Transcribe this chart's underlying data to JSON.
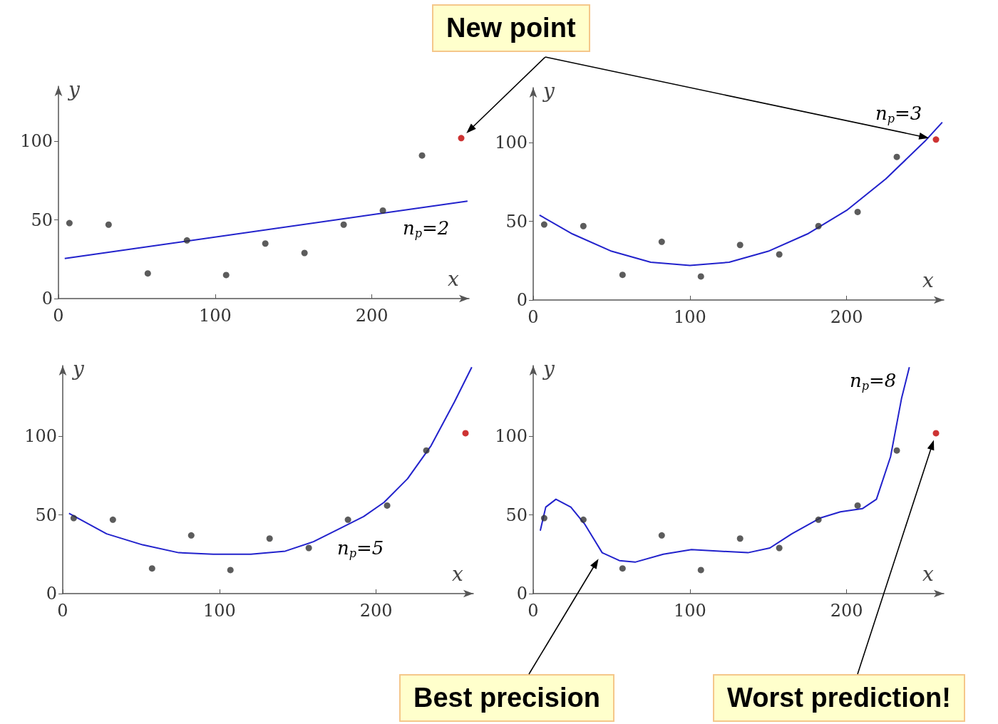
{
  "chart_data": [
    {
      "type": "scatter",
      "xlabel": "x",
      "ylabel": "y",
      "xlim": [
        0,
        262
      ],
      "ylim": [
        0,
        135
      ],
      "xticks": [
        0,
        100,
        200
      ],
      "yticks": [
        0,
        50,
        100
      ],
      "grid": false,
      "marker": "circle",
      "annotations": [
        "n$_{p}$=2",
        "New point"
      ],
      "series": [
        {
          "color": "#333333",
          "x": [
            7,
            32,
            57,
            82,
            107,
            132,
            157,
            182,
            207,
            232
          ],
          "values": [
            48,
            47,
            16,
            37,
            15,
            35,
            29,
            47,
            56,
            91
          ]
        },
        {
          "color": "#c00000",
          "x": [
            257
          ],
          "values": [
            102
          ]
        },
        {
          "type": "line",
          "marker": "none",
          "color": "#2222cc",
          "x": [
            4,
            261
          ],
          "values": [
            25.5,
            62
          ]
        }
      ]
    },
    {
      "type": "scatter",
      "xlabel": "x",
      "ylabel": "y",
      "xlim": [
        0,
        262
      ],
      "ylim": [
        0,
        135
      ],
      "xticks": [
        0,
        100,
        200
      ],
      "yticks": [
        0,
        50,
        100
      ],
      "grid": false,
      "marker": "circle",
      "annotations": [
        "n$_{p}$=3"
      ],
      "series": [
        {
          "color": "#333333",
          "x": [
            7,
            32,
            57,
            82,
            107,
            132,
            157,
            182,
            207,
            232
          ],
          "values": [
            48,
            47,
            16,
            37,
            15,
            35,
            29,
            47,
            56,
            91
          ]
        },
        {
          "color": "#c00000",
          "x": [
            257
          ],
          "values": [
            102
          ]
        },
        {
          "type": "line",
          "marker": "none",
          "color": "#2222cc",
          "x": [
            4,
            25,
            50,
            75,
            100,
            125,
            150,
            175,
            200,
            225,
            250,
            261
          ],
          "values": [
            54,
            42,
            31,
            24,
            22,
            24,
            31,
            42,
            57,
            77,
            101,
            113
          ]
        }
      ]
    },
    {
      "type": "scatter",
      "xlabel": "x",
      "ylabel": "y",
      "xlim": [
        0,
        262
      ],
      "ylim": [
        0,
        145
      ],
      "xticks": [
        0,
        100,
        200
      ],
      "yticks": [
        0,
        50,
        100
      ],
      "grid": false,
      "marker": "circle",
      "annotations": [
        "n$_{p}$=5"
      ],
      "series": [
        {
          "color": "#333333",
          "x": [
            7,
            32,
            57,
            82,
            107,
            132,
            157,
            182,
            207,
            232
          ],
          "values": [
            48,
            47,
            16,
            37,
            15,
            35,
            29,
            47,
            56,
            91
          ]
        },
        {
          "color": "#c00000",
          "x": [
            257
          ],
          "values": [
            102
          ]
        },
        {
          "type": "line",
          "marker": "none",
          "color": "#2222cc",
          "x": [
            4,
            28,
            51,
            74,
            96,
            120,
            142,
            160,
            178,
            192,
            205,
            220,
            235,
            250,
            261
          ],
          "values": [
            51,
            38,
            31,
            26,
            25,
            25,
            27,
            33,
            42,
            49,
            58,
            73,
            94,
            122,
            144
          ]
        }
      ]
    },
    {
      "type": "scatter",
      "xlabel": "x",
      "ylabel": "y",
      "xlim": [
        0,
        262
      ],
      "ylim": [
        0,
        145
      ],
      "xticks": [
        0,
        100,
        200
      ],
      "yticks": [
        0,
        50,
        100
      ],
      "grid": false,
      "marker": "circle",
      "annotations": [
        "n$_{p}$=8",
        "Best precision",
        "Worst prediction!"
      ],
      "series": [
        {
          "color": "#333333",
          "x": [
            7,
            32,
            57,
            82,
            107,
            132,
            157,
            182,
            207,
            232
          ],
          "values": [
            48,
            47,
            16,
            37,
            15,
            35,
            29,
            47,
            56,
            91
          ]
        },
        {
          "color": "#c00000",
          "x": [
            257
          ],
          "values": [
            102
          ]
        },
        {
          "type": "line",
          "marker": "none",
          "color": "#2222cc",
          "x": [
            4.5,
            8,
            14.5,
            24,
            33,
            44,
            55,
            65,
            83,
            101,
            119,
            137,
            151,
            165,
            183,
            196,
            210,
            219,
            228,
            235,
            240
          ],
          "values": [
            40,
            55,
            60,
            55,
            44,
            26,
            21,
            20,
            25,
            28,
            27,
            26,
            29,
            38,
            48,
            52,
            54,
            60,
            87,
            124,
            144
          ]
        }
      ]
    }
  ]
}
